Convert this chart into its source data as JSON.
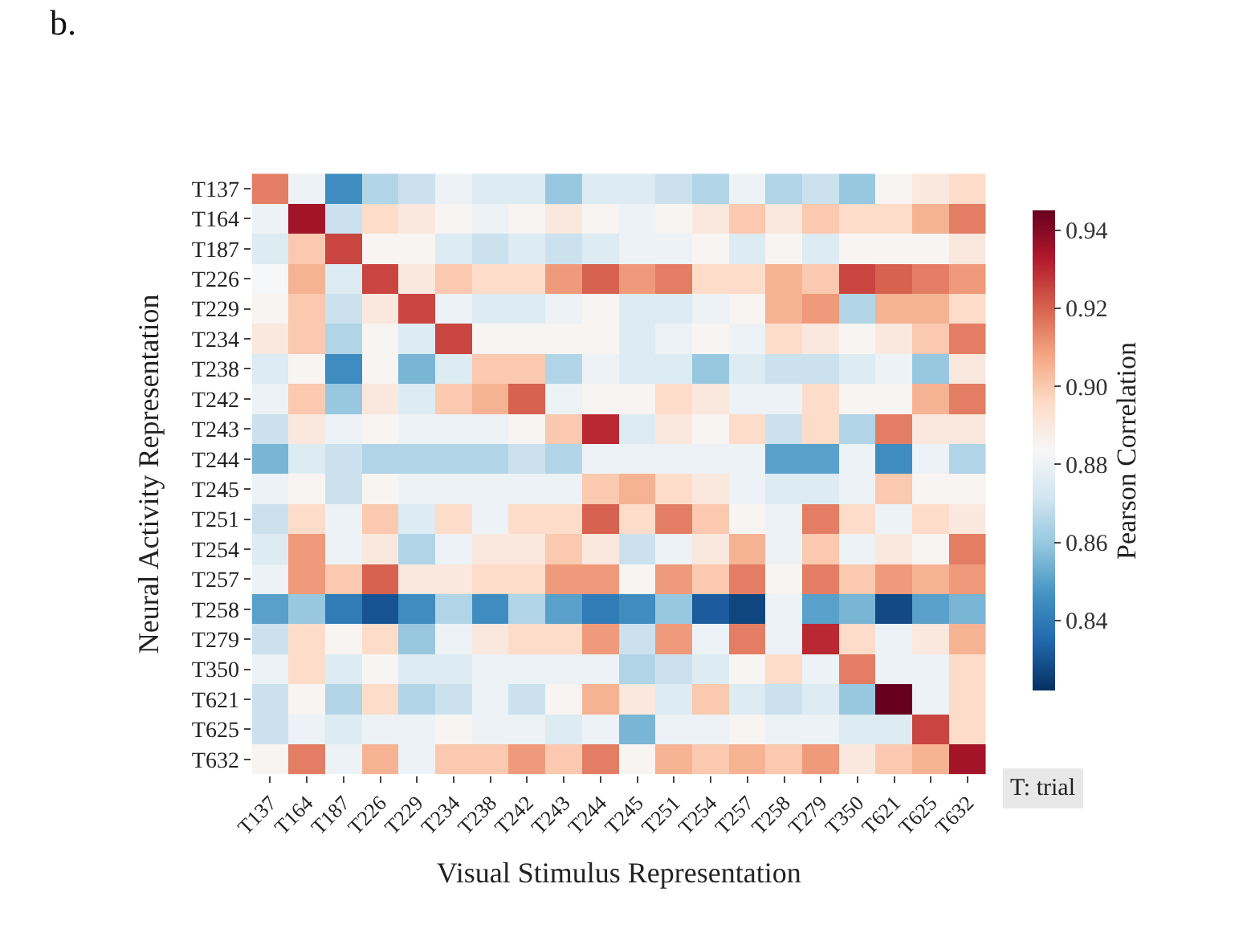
{
  "chart_data": {
    "type": "heatmap",
    "title": "b.",
    "xlabel": "Visual Stimulus Representation",
    "ylabel": "Neural Activity Representation",
    "clabel": "Pearson Correlation",
    "categories": [
      "T137",
      "T164",
      "T187",
      "T226",
      "T229",
      "T234",
      "T238",
      "T242",
      "T243",
      "T244",
      "T245",
      "T251",
      "T254",
      "T257",
      "T258",
      "T279",
      "T350",
      "T621",
      "T625",
      "T632"
    ],
    "y_categories": [
      "T137",
      "T164",
      "T187",
      "T226",
      "T229",
      "T234",
      "T238",
      "T242",
      "T243",
      "T244",
      "T245",
      "T251",
      "T254",
      "T257",
      "T258",
      "T279",
      "T350",
      "T621",
      "T625",
      "T632"
    ],
    "cells": [
      [
        0.915,
        0.88,
        0.845,
        0.865,
        0.87,
        0.88,
        0.875,
        0.875,
        0.86,
        0.875,
        0.875,
        0.87,
        0.865,
        0.88,
        0.865,
        0.87,
        0.86,
        0.885,
        0.89,
        0.895
      ],
      [
        0.88,
        0.935,
        0.87,
        0.895,
        0.89,
        0.885,
        0.88,
        0.885,
        0.89,
        0.885,
        0.88,
        0.885,
        0.89,
        0.9,
        0.89,
        0.9,
        0.895,
        0.895,
        0.905,
        0.915
      ],
      [
        0.875,
        0.9,
        0.925,
        0.885,
        0.885,
        0.875,
        0.87,
        0.875,
        0.87,
        0.875,
        0.88,
        0.88,
        0.885,
        0.875,
        0.885,
        0.875,
        0.885,
        0.885,
        0.885,
        0.89
      ],
      [
        0.883,
        0.905,
        0.875,
        0.925,
        0.89,
        0.9,
        0.895,
        0.895,
        0.91,
        0.92,
        0.91,
        0.915,
        0.895,
        0.895,
        0.905,
        0.9,
        0.925,
        0.92,
        0.915,
        0.91
      ],
      [
        0.885,
        0.9,
        0.87,
        0.89,
        0.925,
        0.88,
        0.875,
        0.875,
        0.88,
        0.885,
        0.875,
        0.875,
        0.88,
        0.885,
        0.905,
        0.91,
        0.865,
        0.905,
        0.905,
        0.895
      ],
      [
        0.89,
        0.9,
        0.865,
        0.885,
        0.875,
        0.925,
        0.885,
        0.885,
        0.885,
        0.885,
        0.875,
        0.88,
        0.885,
        0.88,
        0.895,
        0.89,
        0.885,
        0.89,
        0.9,
        0.915
      ],
      [
        0.875,
        0.885,
        0.845,
        0.885,
        0.855,
        0.875,
        0.9,
        0.9,
        0.865,
        0.88,
        0.875,
        0.875,
        0.86,
        0.875,
        0.87,
        0.87,
        0.875,
        0.88,
        0.86,
        0.89
      ],
      [
        0.88,
        0.9,
        0.86,
        0.89,
        0.875,
        0.9,
        0.905,
        0.92,
        0.88,
        0.885,
        0.885,
        0.895,
        0.89,
        0.88,
        0.88,
        0.895,
        0.885,
        0.885,
        0.905,
        0.915
      ],
      [
        0.87,
        0.89,
        0.88,
        0.885,
        0.88,
        0.88,
        0.88,
        0.885,
        0.9,
        0.93,
        0.875,
        0.89,
        0.885,
        0.895,
        0.87,
        0.895,
        0.865,
        0.915,
        0.89,
        0.89
      ],
      [
        0.855,
        0.875,
        0.87,
        0.865,
        0.865,
        0.865,
        0.865,
        0.87,
        0.865,
        0.88,
        0.88,
        0.88,
        0.88,
        0.88,
        0.85,
        0.85,
        0.88,
        0.845,
        0.88,
        0.865
      ],
      [
        0.88,
        0.885,
        0.87,
        0.885,
        0.88,
        0.88,
        0.88,
        0.88,
        0.88,
        0.9,
        0.905,
        0.895,
        0.89,
        0.88,
        0.875,
        0.875,
        0.88,
        0.9,
        0.885,
        0.885
      ],
      [
        0.87,
        0.895,
        0.88,
        0.9,
        0.875,
        0.895,
        0.88,
        0.895,
        0.895,
        0.92,
        0.895,
        0.915,
        0.9,
        0.885,
        0.88,
        0.915,
        0.895,
        0.88,
        0.895,
        0.89
      ],
      [
        0.875,
        0.91,
        0.88,
        0.89,
        0.865,
        0.88,
        0.89,
        0.89,
        0.9,
        0.89,
        0.87,
        0.88,
        0.89,
        0.905,
        0.88,
        0.9,
        0.88,
        0.89,
        0.885,
        0.915
      ],
      [
        0.88,
        0.91,
        0.9,
        0.92,
        0.89,
        0.89,
        0.895,
        0.895,
        0.91,
        0.91,
        0.885,
        0.91,
        0.9,
        0.915,
        0.885,
        0.915,
        0.9,
        0.91,
        0.905,
        0.91
      ],
      [
        0.85,
        0.86,
        0.84,
        0.83,
        0.845,
        0.865,
        0.845,
        0.865,
        0.85,
        0.84,
        0.845,
        0.86,
        0.832,
        0.827,
        0.88,
        0.85,
        0.855,
        0.828,
        0.85,
        0.855
      ],
      [
        0.87,
        0.895,
        0.885,
        0.895,
        0.86,
        0.88,
        0.89,
        0.895,
        0.895,
        0.91,
        0.87,
        0.91,
        0.88,
        0.915,
        0.88,
        0.93,
        0.895,
        0.88,
        0.89,
        0.905
      ],
      [
        0.88,
        0.895,
        0.875,
        0.885,
        0.875,
        0.875,
        0.88,
        0.88,
        0.88,
        0.88,
        0.865,
        0.87,
        0.875,
        0.885,
        0.895,
        0.88,
        0.915,
        0.88,
        0.88,
        0.895
      ],
      [
        0.87,
        0.885,
        0.865,
        0.895,
        0.865,
        0.87,
        0.88,
        0.87,
        0.885,
        0.905,
        0.89,
        0.875,
        0.9,
        0.875,
        0.87,
        0.875,
        0.86,
        0.945,
        0.88,
        0.895
      ],
      [
        0.87,
        0.88,
        0.875,
        0.88,
        0.88,
        0.885,
        0.88,
        0.88,
        0.875,
        0.88,
        0.855,
        0.88,
        0.88,
        0.885,
        0.88,
        0.88,
        0.875,
        0.875,
        0.925,
        0.895
      ],
      [
        0.885,
        0.915,
        0.88,
        0.905,
        0.88,
        0.9,
        0.9,
        0.91,
        0.9,
        0.915,
        0.885,
        0.905,
        0.9,
        0.905,
        0.9,
        0.91,
        0.89,
        0.9,
        0.905,
        0.935
      ]
    ],
    "clim": [
      0.822,
      0.945
    ],
    "cticks": [
      0.84,
      0.86,
      0.88,
      {
        "value": 0.9,
        "label": "0.90"
      },
      0.92,
      0.94
    ],
    "annotations": [
      "T: trial"
    ]
  }
}
